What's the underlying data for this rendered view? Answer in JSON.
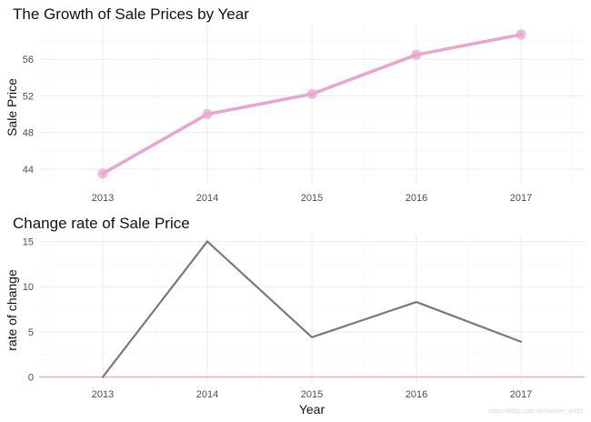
{
  "chart_data": [
    {
      "type": "line",
      "title": "The Growth of Sale Prices by Year",
      "xlabel": "",
      "ylabel": "Sale Price",
      "categories": [
        "2013",
        "2014",
        "2015",
        "2016",
        "2017"
      ],
      "values": [
        43.5,
        50.0,
        52.2,
        56.5,
        58.7
      ],
      "ylim": [
        42.3,
        59.7
      ],
      "yticks": [
        44,
        48,
        52,
        56
      ],
      "line_color": "#e8a6cf",
      "markers": true
    },
    {
      "type": "line",
      "title": "Change rate of Sale Price",
      "xlabel": "Year",
      "ylabel": "rate of change",
      "categories": [
        "2013",
        "2014",
        "2015",
        "2016",
        "2017"
      ],
      "values": [
        0,
        15.0,
        4.4,
        8.3,
        3.9
      ],
      "ylim": [
        -0.75,
        15.75
      ],
      "yticks": [
        0,
        5,
        10,
        15
      ],
      "line_color": "#7a7a7a",
      "hline": 0,
      "hline_color": "#e8a6cf"
    }
  ],
  "watermark": "https://blog.csdn.net/weixin_4415"
}
